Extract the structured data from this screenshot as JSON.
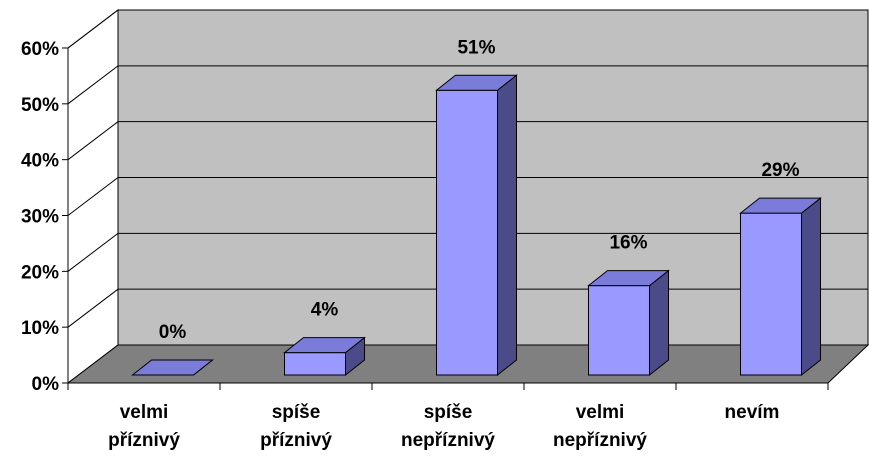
{
  "chart_data": {
    "type": "bar",
    "categories": [
      [
        "velmi",
        "příznivý"
      ],
      [
        "spíše",
        "příznivý"
      ],
      [
        "spíše",
        "nepříznivý"
      ],
      [
        "velmi",
        "nepříznivý"
      ],
      [
        "nevím"
      ]
    ],
    "values": [
      0,
      4,
      51,
      16,
      29
    ],
    "data_labels": [
      "0%",
      "4%",
      "51%",
      "16%",
      "29%"
    ],
    "y_ticks": [
      "0%",
      "10%",
      "20%",
      "30%",
      "40%",
      "50%",
      "60%"
    ],
    "ylim": [
      0,
      60
    ],
    "grid": true,
    "style": "3d-column",
    "colors": {
      "bar_front": "#9999ff",
      "bar_top": "#7b7bd9",
      "bar_side": "#4b4b8a",
      "back_wall": "#c0c0c0",
      "floor": "#808080",
      "side_wall": "#ffffff"
    }
  }
}
